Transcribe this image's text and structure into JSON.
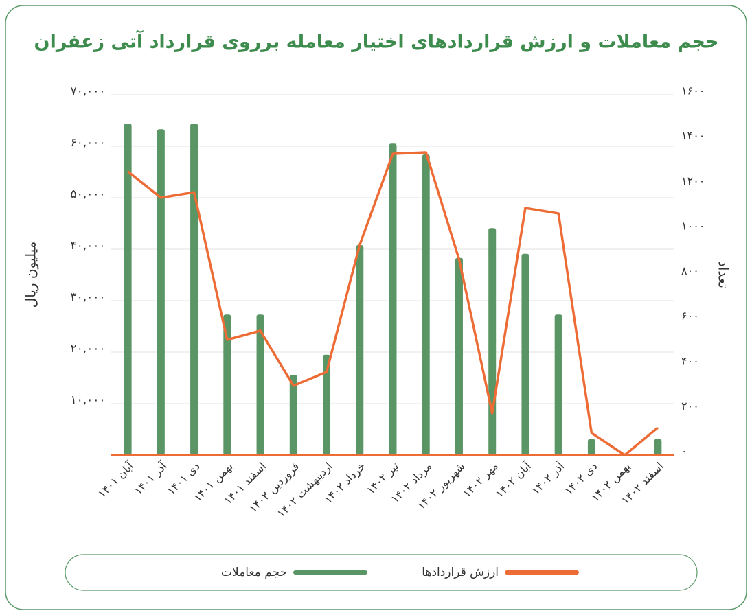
{
  "chart_data": {
    "type": "bar_line",
    "title": "حجم معاملات و ارزش قراردادهای اختیار معامله برروی قرارداد آتی زعفران",
    "y_label": "میلیون ریال",
    "y2_label": "تعداد",
    "categories": [
      "آبان ۱۴۰۱",
      "آذر ۱۴۰۱",
      "دی ۱۴۰۱",
      "بهمن ۱۴۰۱",
      "اسفند ۱۴۰۱",
      "فروردین ۱۴۰۲",
      "اردیبهشت ۱۴۰۲",
      "خرداد ۱۴۰۲",
      "تیر ۱۴۰۲",
      "مرداد ۱۴۰۲",
      "شهریور ۱۴۰۲",
      "مهر ۱۴۰۲",
      "آبان ۱۴۰۲",
      "آذر ۱۴۰۲",
      "دی ۱۴۰۲",
      "بهمن ۱۴۰۲",
      "اسفند ۱۴۰۲"
    ],
    "series": [
      {
        "name": "حجم معاملات",
        "color": "#5a9665",
        "kind": "bar",
        "axis": "y",
        "values": [
          64400,
          63300,
          64400,
          27300,
          27300,
          15600,
          19500,
          40800,
          60500,
          58400,
          38300,
          44100,
          39100,
          27300,
          3100,
          0,
          3100
        ]
      },
      {
        "name": "ارزش قراردادها",
        "color": "#ed6b35",
        "kind": "line",
        "axis": "y2",
        "values": [
          1259,
          1143,
          1167,
          512,
          552,
          308,
          369,
          933,
          1338,
          1344,
          869,
          186,
          1097,
          1073,
          98,
          0,
          122
        ]
      }
    ],
    "ylim": [
      0,
      70000
    ],
    "yticks": [
      {
        "value": 10000,
        "label": "۱۰,۰۰۰"
      },
      {
        "value": 20000,
        "label": "۲۰,۰۰۰"
      },
      {
        "value": 30000,
        "label": "۳۰,۰۰۰"
      },
      {
        "value": 40000,
        "label": "۴۰,۰۰۰"
      },
      {
        "value": 50000,
        "label": "۵۰,۰۰۰"
      },
      {
        "value": 60000,
        "label": "۶۰,۰۰۰"
      },
      {
        "value": 70000,
        "label": "۷۰,۰۰۰"
      }
    ],
    "y2lim": [
      0,
      1600
    ],
    "y2ticks": [
      {
        "value": 0,
        "label": "۰"
      },
      {
        "value": 200,
        "label": "۲۰۰"
      },
      {
        "value": 400,
        "label": "۴۰۰"
      },
      {
        "value": 600,
        "label": "۶۰۰"
      },
      {
        "value": 800,
        "label": "۸۰۰"
      },
      {
        "value": 1000,
        "label": "۱۰۰۰"
      },
      {
        "value": 1200,
        "label": "۱۲۰۰"
      },
      {
        "value": 1400,
        "label": "۱۴۰۰"
      },
      {
        "value": 1600,
        "label": "۱۶۰۰"
      }
    ],
    "grid": true,
    "legend": "bottom"
  }
}
